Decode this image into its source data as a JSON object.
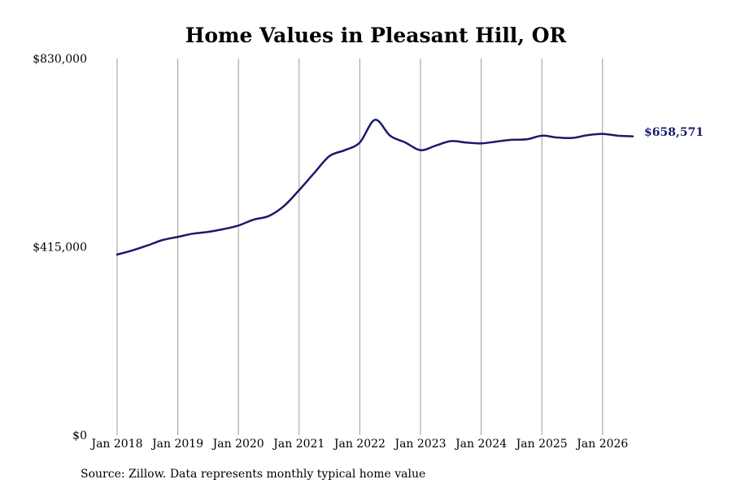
{
  "colors": {
    "line": "#1a1a6e",
    "grid": "#9a9a9a"
  },
  "footer": {
    "source": "Source: Zillow. Data represents monthly typical home value"
  },
  "chart_data": {
    "type": "line",
    "title": "Home Values in Pleasant Hill, OR",
    "xlabel": "",
    "ylabel": "",
    "ylim": [
      0,
      830000
    ],
    "y_ticks": [
      {
        "value": 0,
        "label": "$0"
      },
      {
        "value": 415000,
        "label": "$415,000"
      },
      {
        "value": 830000,
        "label": "$830,000"
      }
    ],
    "x_ticks": [
      {
        "value": 2018.0,
        "label": "Jan 2018"
      },
      {
        "value": 2019.0,
        "label": "Jan 2019"
      },
      {
        "value": 2020.0,
        "label": "Jan 2020"
      },
      {
        "value": 2021.0,
        "label": "Jan 2021"
      },
      {
        "value": 2022.0,
        "label": "Jan 2022"
      },
      {
        "value": 2023.0,
        "label": "Jan 2023"
      },
      {
        "value": 2024.0,
        "label": "Jan 2024"
      },
      {
        "value": 2025.0,
        "label": "Jan 2025"
      },
      {
        "value": 2026.0,
        "label": "Jan 2026"
      }
    ],
    "xlim": [
      2018.0,
      2026.5
    ],
    "grid": "vertical",
    "end_label": "$658,571",
    "series": [
      {
        "x": [
          2018.0,
          2018.25,
          2018.5,
          2018.75,
          2019.0,
          2019.25,
          2019.5,
          2019.75,
          2020.0,
          2020.25,
          2020.5,
          2020.75,
          2021.0,
          2021.25,
          2021.5,
          2021.75,
          2022.0,
          2022.25,
          2022.5,
          2022.75,
          2023.0,
          2023.25,
          2023.5,
          2023.75,
          2024.0,
          2024.25,
          2024.5,
          2024.75,
          2025.0,
          2025.25,
          2025.5,
          2025.75,
          2026.0,
          2026.25,
          2026.5
        ],
        "y": [
          398000,
          407000,
          418000,
          430000,
          437000,
          444000,
          448000,
          454000,
          462000,
          475000,
          483000,
          505000,
          540000,
          578000,
          615000,
          628000,
          645000,
          695000,
          660000,
          645000,
          628000,
          638000,
          648000,
          645000,
          643000,
          647000,
          651000,
          652000,
          660000,
          656000,
          655000,
          661000,
          664000,
          660000,
          658571
        ]
      }
    ]
  }
}
